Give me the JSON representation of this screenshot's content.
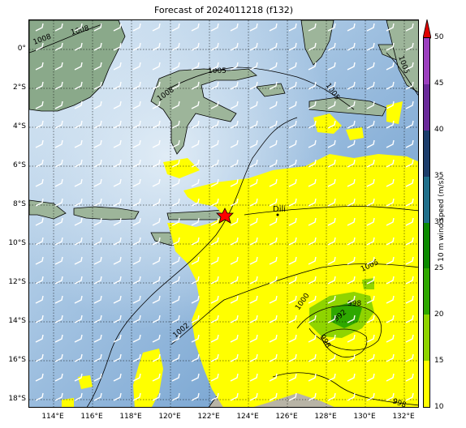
{
  "title": "Forecast of 2024011218 (f132)",
  "lat_labels": [
    "0°",
    "2°S",
    "4°S",
    "6°S",
    "8°S",
    "10°S",
    "12°S",
    "14°S",
    "16°S",
    "18°S"
  ],
  "lon_labels": [
    "114°E",
    "116°E",
    "118°E",
    "120°E",
    "122°E",
    "124°E",
    "126°E",
    "128°E",
    "130°E",
    "132°E"
  ],
  "colorbar": {
    "title": "10 m wind speed (m/s)",
    "ticks": [
      "10",
      "15",
      "20",
      "25",
      "30",
      "35",
      "40",
      "45",
      "50"
    ],
    "colors": [
      "#ffff00",
      "#8fd400",
      "#2ea800",
      "#0a8a00",
      "#1f6f8b",
      "#1c3d6b",
      "#6a2a9a",
      "#9c3fbf",
      "#c93fd0"
    ],
    "extend_color": "#e00000"
  },
  "contour_labels": [
    "1008",
    "1008",
    "1008",
    "1005",
    "1005",
    "1005",
    "1005",
    "1002",
    "1000",
    "998",
    "998",
    "998",
    "992"
  ],
  "city_label": "Dili",
  "colors": {
    "ocean_deep": "#6f9fcf",
    "ocean_shallow": "#c7dcef",
    "land": "#8fae8f",
    "wind_fill": "#ffff00",
    "storm_marker": "#ff0000"
  },
  "icons": {
    "storm_marker": "red-star-icon"
  }
}
